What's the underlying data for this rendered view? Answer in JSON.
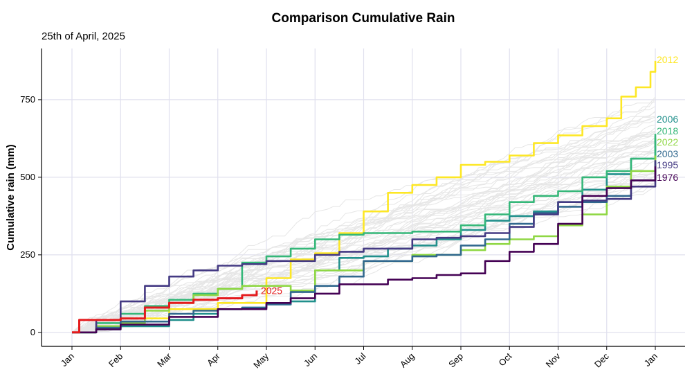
{
  "header": {
    "title": "Comparison Cumulative Rain",
    "subtitle": "25th of April, 2025"
  },
  "chart_data": {
    "type": "line",
    "title": "Comparison Cumulative Rain",
    "subtitle": "25th of April, 2025",
    "xlabel": "",
    "ylabel": "Cumulative rain (mm)",
    "ylim": [
      -45,
      915
    ],
    "yticks": [
      0,
      250,
      500,
      750
    ],
    "x_ticks": [
      "Jan",
      "Feb",
      "Mar",
      "Apr",
      "May",
      "Jun",
      "Jul",
      "Aug",
      "Sep",
      "Oct",
      "Nov",
      "Dec",
      "Jan"
    ],
    "x_unit": "month index (0 = Jan 1, 12 = following Jan 1)",
    "grid": true,
    "background_series": {
      "count": 48,
      "color": "#e6e6e6",
      "description": "other years, unlabelled"
    },
    "series": [
      {
        "name": "2012",
        "color": "#FDE725",
        "x": [
          0,
          0.5,
          1,
          2,
          3,
          4,
          4.5,
          5,
          5.5,
          6,
          6.5,
          7,
          7.5,
          8,
          8.5,
          9,
          9.5,
          10,
          10.5,
          11,
          11.3,
          11.6,
          11.9,
          12
        ],
        "values": [
          0,
          20,
          45,
          75,
          95,
          175,
          235,
          255,
          320,
          390,
          450,
          475,
          500,
          540,
          550,
          570,
          610,
          635,
          665,
          690,
          760,
          790,
          840,
          875
        ]
      },
      {
        "name": "2006",
        "color": "#21908C",
        "x": [
          0,
          0.5,
          1,
          2,
          2.5,
          3,
          3.5,
          4,
          4.5,
          5,
          5.5,
          6,
          6.5,
          7,
          7.5,
          8,
          8.5,
          9,
          9.5,
          10,
          10.5,
          11,
          11.5,
          12
        ],
        "values": [
          0,
          10,
          20,
          40,
          60,
          75,
          80,
          90,
          100,
          200,
          240,
          245,
          270,
          280,
          300,
          330,
          360,
          375,
          390,
          420,
          460,
          510,
          560,
          625
        ]
      },
      {
        "name": "2018",
        "color": "#35B779",
        "x": [
          0,
          0.5,
          1,
          1.5,
          2,
          2.5,
          3,
          3.5,
          4,
          4.5,
          5,
          5.5,
          6,
          7,
          8,
          8.5,
          9,
          9.5,
          10,
          10.5,
          11,
          11.5,
          12
        ],
        "values": [
          0,
          30,
          60,
          85,
          105,
          125,
          140,
          225,
          245,
          270,
          300,
          315,
          320,
          325,
          345,
          380,
          420,
          440,
          455,
          500,
          520,
          560,
          640
        ]
      },
      {
        "name": "2022",
        "color": "#8FD744",
        "x": [
          0,
          0.5,
          1,
          1.5,
          2,
          2.5,
          3,
          3.5,
          4,
          4.5,
          5,
          6,
          7,
          8,
          8.5,
          9,
          9.5,
          10,
          10.5,
          11,
          11.5,
          12
        ],
        "values": [
          0,
          20,
          30,
          70,
          95,
          120,
          140,
          150,
          150,
          135,
          200,
          230,
          250,
          265,
          285,
          300,
          310,
          345,
          380,
          470,
          520,
          570
        ]
      },
      {
        "name": "2003",
        "color": "#31688E",
        "x": [
          0,
          0.5,
          1,
          2,
          2.5,
          3,
          3.5,
          4,
          4.5,
          5,
          5.5,
          6,
          7,
          7.5,
          8,
          8.5,
          9,
          9.5,
          10,
          10.5,
          11,
          11.5,
          12
        ],
        "values": [
          0,
          15,
          35,
          60,
          70,
          75,
          80,
          90,
          130,
          150,
          180,
          230,
          245,
          250,
          280,
          300,
          350,
          385,
          405,
          420,
          440,
          490,
          550
        ]
      },
      {
        "name": "1995",
        "color": "#443A83",
        "x": [
          0,
          0.5,
          1,
          1.5,
          2,
          2.5,
          3,
          3.5,
          4,
          5,
          5.5,
          6,
          7,
          7.5,
          8,
          8.5,
          9,
          9.5,
          10,
          10.5,
          11,
          11.5,
          12
        ],
        "values": [
          0,
          40,
          100,
          150,
          180,
          200,
          215,
          220,
          230,
          250,
          260,
          270,
          300,
          305,
          310,
          320,
          340,
          380,
          420,
          425,
          430,
          470,
          555
        ]
      },
      {
        "name": "1976",
        "color": "#440154",
        "x": [
          0,
          0.5,
          1,
          2,
          3,
          4,
          4.5,
          5,
          5.5,
          6,
          6.5,
          7,
          7.5,
          8,
          8.2,
          8.5,
          9,
          9.5,
          10,
          10.5,
          11,
          11.5,
          12
        ],
        "values": [
          0,
          10,
          25,
          50,
          75,
          95,
          110,
          125,
          155,
          155,
          170,
          175,
          185,
          190,
          190,
          230,
          260,
          285,
          350,
          440,
          465,
          490,
          535
        ]
      },
      {
        "name": "2025",
        "color": "#E41A1C",
        "x": [
          0,
          0.15,
          0.3,
          1,
          1.5,
          2,
          2.5,
          3,
          3.5,
          3.8
        ],
        "values": [
          0,
          40,
          40,
          45,
          80,
          95,
          105,
          110,
          120,
          135
        ]
      }
    ]
  }
}
